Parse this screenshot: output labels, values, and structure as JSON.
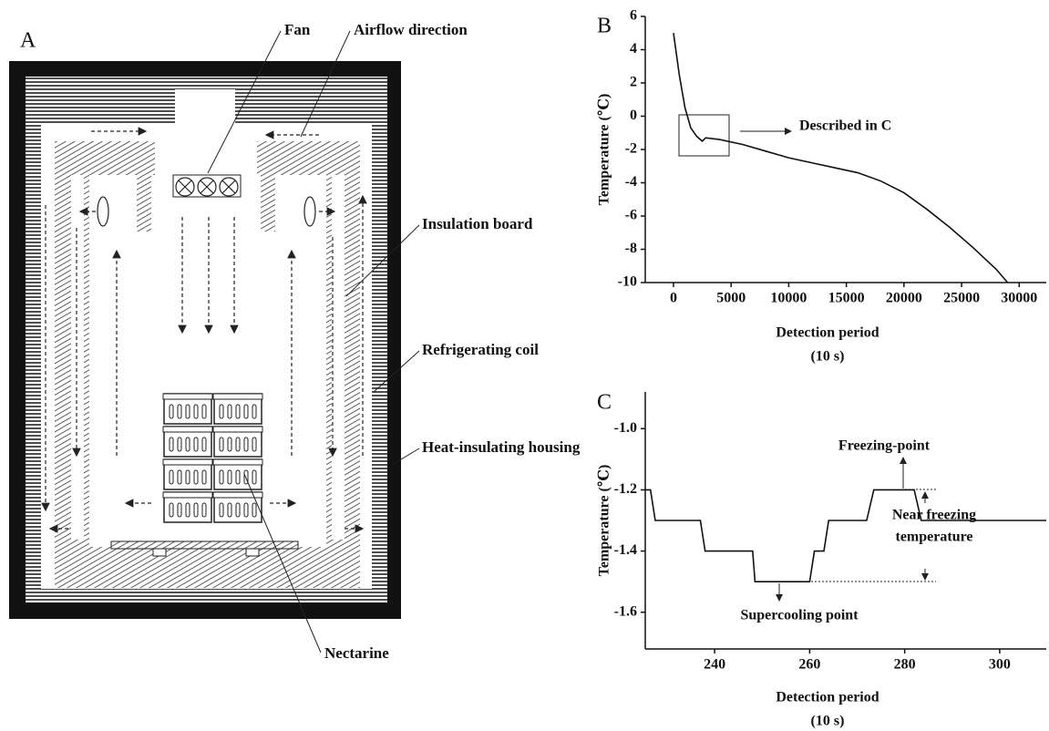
{
  "diagram": {
    "panel": "A",
    "labels": [
      "Fan",
      "Airflow direction",
      "Insulation board",
      "Refrigerating coil",
      "Heat-insulating housing",
      "Nectarine"
    ]
  },
  "chart_data": [
    {
      "type": "line",
      "panel": "B",
      "ylabel": "Temperature (℃)",
      "xlabel": [
        "Detection period",
        "(10 s)"
      ],
      "annotations": [
        "Described in C"
      ],
      "x": [
        0,
        500,
        1000,
        1500,
        2000,
        2500,
        2800,
        4000,
        6000,
        8000,
        10000,
        12000,
        14000,
        16000,
        18000,
        20000,
        22000,
        24000,
        26000,
        28000,
        29000
      ],
      "values": [
        5,
        2.5,
        0.5,
        -0.7,
        -1.2,
        -1.5,
        -1.3,
        -1.4,
        -1.7,
        -2.1,
        -2.5,
        -2.8,
        -3.1,
        -3.4,
        -3.9,
        -4.6,
        -5.6,
        -6.7,
        -7.9,
        -9.2,
        -10
      ],
      "color": "#111111",
      "xlim": [
        -2450,
        32350
      ],
      "xticks": [
        0,
        5000,
        10000,
        15000,
        20000,
        25000,
        30000
      ],
      "ylim": [
        -10,
        6
      ],
      "yticks": [
        -10,
        -8,
        -6,
        -4,
        -2,
        0,
        2,
        4,
        6
      ]
    },
    {
      "type": "line",
      "panel": "C",
      "ylabel": "Temperature (℃)",
      "xlabel": [
        "Detection period",
        "(10 s)"
      ],
      "annotations": [
        "Freezing-point",
        "Supercooling point",
        "Near freezing",
        "temperature"
      ],
      "x": [
        225.4,
        226.5,
        227.5,
        237,
        238,
        248,
        248.5,
        260,
        261,
        263,
        264,
        272,
        273.5,
        282,
        283.5,
        309.8
      ],
      "values": [
        -1.2,
        -1.2,
        -1.3,
        -1.3,
        -1.4,
        -1.4,
        -1.5,
        -1.5,
        -1.4,
        -1.4,
        -1.3,
        -1.3,
        -1.2,
        -1.2,
        -1.3,
        -1.3
      ],
      "color": "#111111",
      "xlim": [
        225.4,
        309.8
      ],
      "xticks": [
        240,
        260,
        280,
        300
      ],
      "ylim": [
        -1.72,
        -0.88
      ],
      "yticks": [
        {
          "value": -1,
          "label": "-1.0"
        },
        -1.2,
        -1.4,
        -1.6
      ]
    }
  ]
}
